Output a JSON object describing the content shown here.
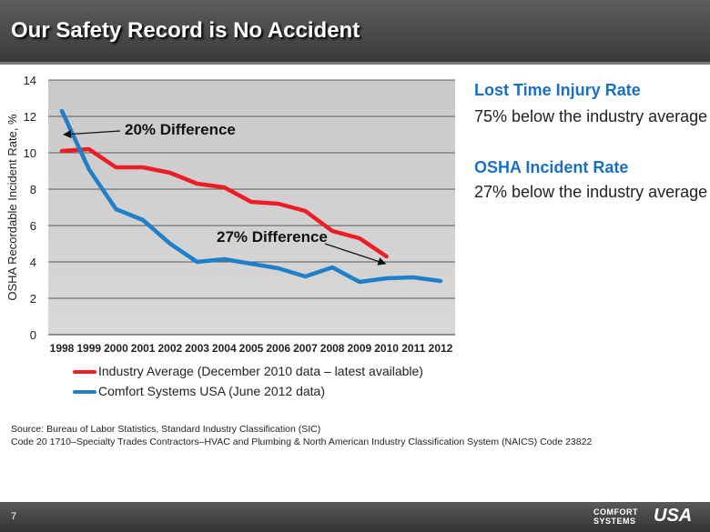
{
  "header": {
    "title": "Our Safety Record is No Accident"
  },
  "chart_data": {
    "type": "line",
    "x": [
      "1998",
      "1999",
      "2000",
      "2001",
      "2002",
      "2003",
      "2004",
      "2005",
      "2006",
      "2007",
      "2008",
      "2009",
      "2010",
      "2011",
      "2012"
    ],
    "ylabel": "OSHA Recordable Incident Rate, %",
    "ylim": [
      0,
      14
    ],
    "yticks": [
      0,
      2,
      4,
      6,
      8,
      10,
      12,
      14
    ],
    "grid": true,
    "legend_position": "bottom",
    "series": [
      {
        "name": "Industry Average (December 2010 data – latest available)",
        "color": "#ee1c25",
        "values": [
          10.1,
          10.2,
          9.2,
          9.2,
          8.9,
          8.3,
          8.1,
          7.3,
          7.2,
          6.8,
          5.7,
          5.3,
          4.3,
          null,
          null
        ]
      },
      {
        "name": "Comfort Systems USA (June 2012 data)",
        "color": "#1f7fc8",
        "values": [
          12.3,
          9.1,
          6.9,
          6.3,
          5.0,
          4.0,
          4.15,
          3.9,
          3.65,
          3.2,
          3.7,
          2.9,
          3.1,
          3.15,
          2.95
        ]
      }
    ],
    "annotations": [
      {
        "text": "20% Difference",
        "arrow_to_x": "1998",
        "arrow_to_y": 11.0
      },
      {
        "text": "27% Difference",
        "arrow_to_x": "2010",
        "arrow_to_y": 3.9
      }
    ]
  },
  "side": {
    "lost_time_head": "Lost Time Injury Rate",
    "lost_time_body": "75% below the industry average",
    "osha_head": "OSHA Incident Rate",
    "osha_body": "27% below the industry average"
  },
  "source": {
    "line1": "Source: Bureau of Labor Statistics, Standard Industry Classification (SIC)",
    "line2": "Code 20 1710–Specialty Trades Contractors–HVAC and Plumbing & North American Industry Classification System (NAICS) Code 23822"
  },
  "footer": {
    "page_number": "7",
    "logo_line1": "COMFORT",
    "logo_line2": "SYSTEMS",
    "logo_mark": "USA"
  }
}
